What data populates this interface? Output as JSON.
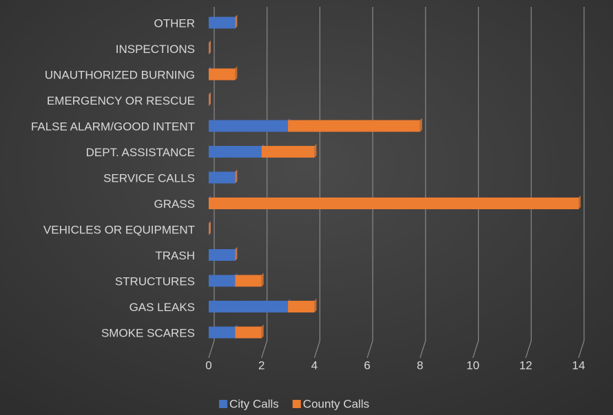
{
  "chart_data": {
    "type": "stacked-bar-horizontal",
    "categories": [
      "OTHER",
      "INSPECTIONS",
      "UNAUTHORIZED BURNING",
      "EMERGENCY OR RESCUE",
      "FALSE ALARM/GOOD INTENT",
      "DEPT. ASSISTANCE",
      "SERVICE CALLS",
      "GRASS",
      "VEHICLES OR EQUIPMENT",
      "TRASH",
      "STRUCTURES",
      "GAS LEAKS",
      "SMOKE SCARES"
    ],
    "series": [
      {
        "name": "City Calls",
        "color": "#4472c4",
        "values": [
          1,
          0,
          0,
          0,
          3,
          2,
          1,
          0,
          0,
          1,
          1,
          3,
          1
        ]
      },
      {
        "name": "County Calls",
        "color": "#ed7d31",
        "values": [
          0,
          0,
          1,
          0,
          5,
          2,
          0,
          14,
          0,
          0,
          1,
          1,
          1
        ]
      }
    ],
    "xlim": [
      0,
      14
    ],
    "xticks": [
      0,
      2,
      4,
      6,
      8,
      10,
      12,
      14
    ],
    "grid": true,
    "legend": "bottom"
  }
}
